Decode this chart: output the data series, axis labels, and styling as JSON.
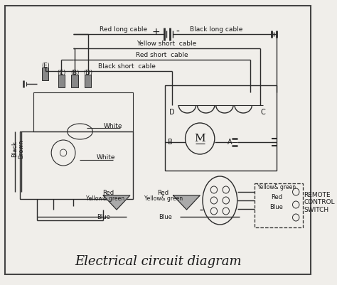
{
  "title": "Electrical circuit diagram",
  "background_color": "#f0eeea",
  "border_color": "#444444",
  "line_color": "#2a2a2a",
  "text_color": "#1a1a1a",
  "figsize": [
    4.74,
    4.01
  ],
  "dpi": 100,
  "labels": {
    "red_long_cable": "Red long cable",
    "black_long_cable": "Black long cable",
    "yellow_short_cable": "Yellow short  cable",
    "red_short_cable": "Red short  cable",
    "black_short_cable": "Black short  cable",
    "white1": "White",
    "white2": "White",
    "black_lbl": "Black",
    "brown_lbl": "Brown",
    "E": "(E)",
    "C_post": "(C)",
    "B_post": "(B)",
    "D_post": "(D)",
    "A_lbl": "A",
    "B_lbl": "B",
    "C_lbl": "C",
    "D_lbl": "D",
    "remote": "REMOTE\nCONTROL\nSWITCH",
    "red_top": "Red",
    "red_mid": "Red",
    "yg_left": "Yellow& green",
    "yg_mid": "Yellow& green",
    "yg_right": "Yellow& green",
    "blue_left": "Blue",
    "blue_mid": "Blue",
    "blue_right": "Blue",
    "red_right": "Red",
    "plus": "+",
    "minus": "-"
  }
}
